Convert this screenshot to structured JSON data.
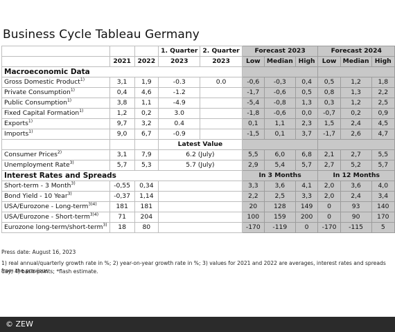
{
  "title": "Business Cycle Tableau Germany",
  "header": {
    "q1": "1. Quarter",
    "q2": "2. Quarter",
    "forecast2023": "Forecast 2023",
    "forecast2024": "Forecast 2024",
    "y2021": "2021",
    "y2022": "2022",
    "y2023a": "2023",
    "y2023b": "2023",
    "low": "Low",
    "median": "Median",
    "high": "High"
  },
  "sections": {
    "macro": "Macroeconomic Data",
    "rates": "Interest Rates and Spreads"
  },
  "latest_value": "Latest Value",
  "in3": "In 3 Months",
  "in12": "In 12 Months",
  "rows": {
    "gdp": {
      "label": "Gross Domestic Product",
      "sup": "1)",
      "v": [
        "3,1",
        "1,9",
        "-0.3",
        "0.0",
        "-0,6",
        "-0,3",
        "0,4",
        "0,5",
        "1,2",
        "1,8"
      ]
    },
    "priv": {
      "label": "Private Consumption",
      "sup": "1)",
      "v": [
        "0,4",
        "4,6",
        "-1.2",
        "",
        "-1,7",
        "-0,6",
        "0,5",
        "0,8",
        "1,3",
        "2,2"
      ]
    },
    "pub": {
      "label": "Public Consumption",
      "sup": "1)",
      "v": [
        "3,8",
        "1,1",
        "-4.9",
        "",
        "-5,4",
        "-0,8",
        "1,3",
        "0,3",
        "1,2",
        "2,5"
      ]
    },
    "fcf": {
      "label": "Fixed Capital Formation",
      "sup": "1)",
      "v": [
        "1,2",
        "0,2",
        "3.0",
        "",
        "-1,8",
        "-0,6",
        "0,0",
        "-0,7",
        "0,2",
        "0,9"
      ]
    },
    "exp": {
      "label": "Exports",
      "sup": "1)",
      "v": [
        "9,7",
        "3,2",
        "0.4",
        "",
        "0,1",
        "1,1",
        "2,3",
        "1,5",
        "2,4",
        "4,5"
      ]
    },
    "imp": {
      "label": "Imports",
      "sup": "1)",
      "v": [
        "9,0",
        "6,7",
        "-0.9",
        "",
        "-1,5",
        "0,1",
        "3,7",
        "-1,7",
        "2,6",
        "4,7"
      ]
    },
    "cpi": {
      "label": "Consumer Prices",
      "sup": "2)",
      "v": [
        "3,1",
        "7,9",
        "6.2 (July)",
        "5,5",
        "6,0",
        "6,8",
        "2,1",
        "2,7",
        "5,5"
      ]
    },
    "unemp": {
      "label": "Unemployment Rate",
      "sup": "3)",
      "v": [
        "5,7",
        "5,3",
        "5.7 (July)",
        "2,9",
        "5,4",
        "5,7",
        "2,7",
        "5,2",
        "5,7"
      ]
    },
    "st": {
      "label": "Short-term - 3 Month",
      "sup": "3)",
      "v": [
        "-0,55",
        "0,34",
        "3,3",
        "3,6",
        "4,1",
        "2,0",
        "3,6",
        "4,0"
      ]
    },
    "bond": {
      "label": "Bond Yield - 10 Year",
      "sup": "3)",
      "v": [
        "-0,37",
        "1,14",
        "2,2",
        "2,5",
        "3,3",
        "2,0",
        "2,4",
        "3,4"
      ]
    },
    "usalt": {
      "label": "USA/Eurozone - Long-term",
      "sup": "3)4)",
      "v": [
        "181",
        "181",
        "20",
        "128",
        "149",
        "0",
        "93",
        "140"
      ]
    },
    "usast": {
      "label": "USA/Eurozone - Short-term",
      "sup": "3)4)",
      "v": [
        "71",
        "204",
        "100",
        "159",
        "200",
        "0",
        "90",
        "170"
      ]
    },
    "ezls": {
      "label": "Eurozone long-term/short-term",
      "sup": "3)",
      "v": [
        "18",
        "80",
        "-170",
        "-119",
        "0",
        "-170",
        "-115",
        "5"
      ]
    }
  },
  "press_date": "Press date: August 16, 2023",
  "footnote_1": "1) real annual/quarterly growth rate in %; 2) year-on-year growth rate in %; 3) values for 2021 and 2022 are averages, interest rates and spreads from the previous",
  "footnote_2": "day; 4) basis points; *flash estimate.",
  "footer": "© ZEW"
}
